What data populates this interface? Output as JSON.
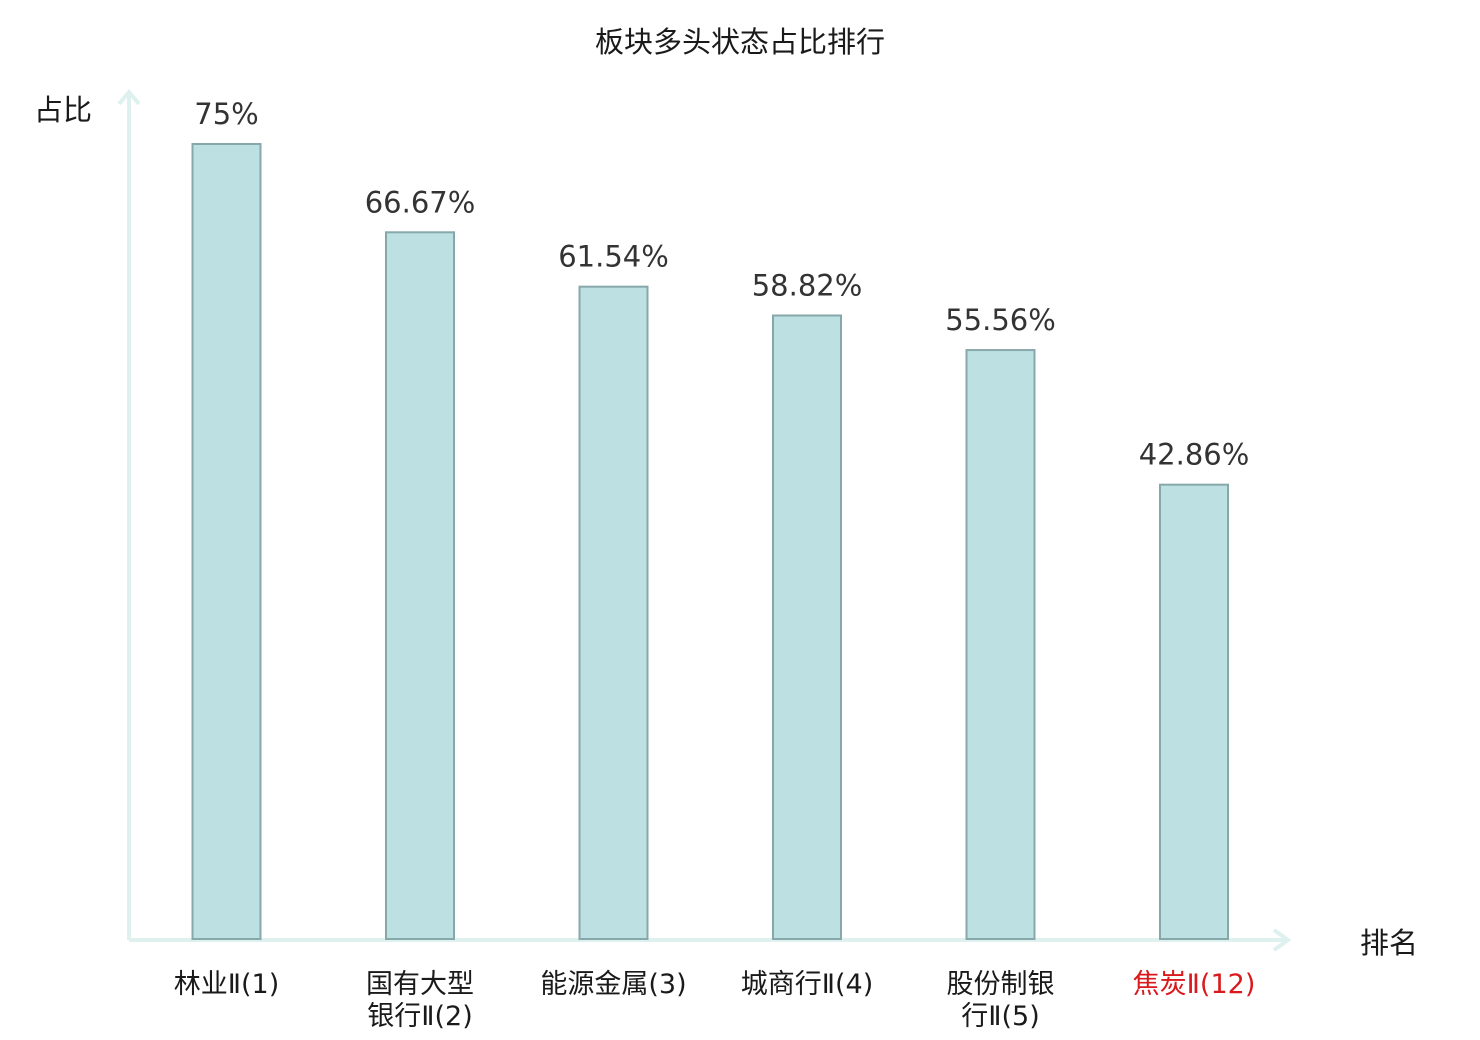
{
  "chart_data": {
    "type": "bar",
    "title": "板块多头状态占比排行",
    "ylabel": "占比",
    "xlabel": "排名",
    "categories": [
      [
        "林业Ⅱ(1)"
      ],
      [
        "国有大型",
        "银行Ⅱ(2)"
      ],
      [
        "能源金属(3)"
      ],
      [
        "城商行Ⅱ(4)"
      ],
      [
        "股份制银",
        "行Ⅱ(5)"
      ],
      [
        "焦炭Ⅱ(12)"
      ]
    ],
    "values": [
      75,
      66.67,
      61.54,
      58.82,
      55.56,
      42.86
    ],
    "value_labels": [
      "75%",
      "66.67%",
      "61.54%",
      "58.82%",
      "55.56%",
      "42.86%"
    ],
    "highlight_index": 5,
    "ylim": [
      0,
      75
    ],
    "colors": {
      "bar_fill": "#bde0e2",
      "bar_stroke": "#86a8aa",
      "axis": "#dff1ef",
      "highlight_label": "#d9191c"
    },
    "grid": false
  }
}
